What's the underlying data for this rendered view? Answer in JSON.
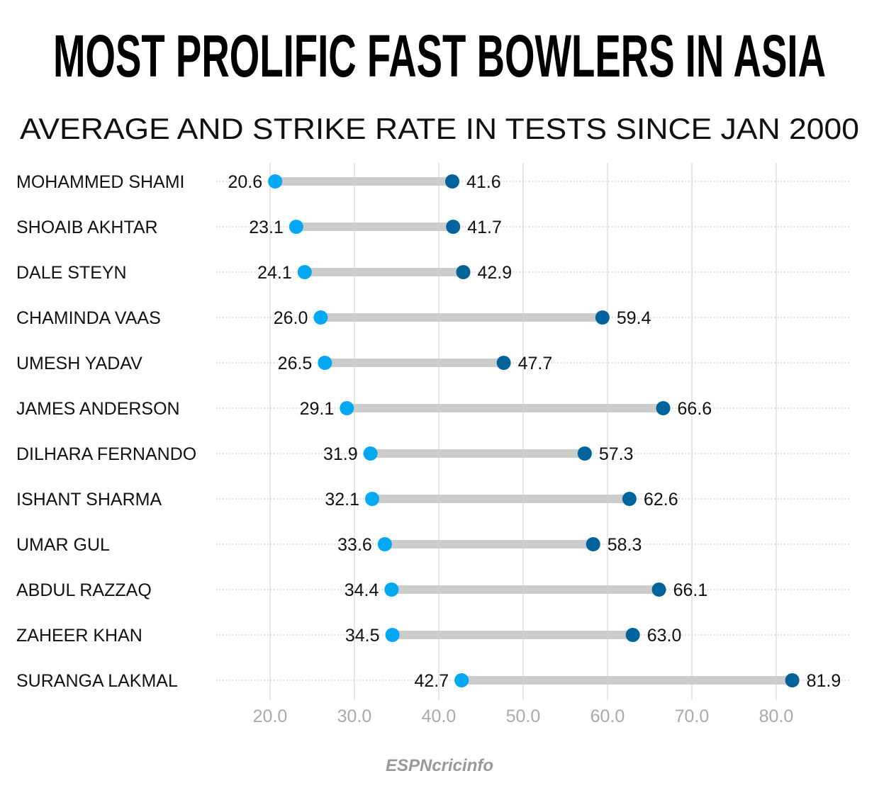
{
  "chart_data": {
    "type": "dumbbell",
    "title": "MOST PROLIFIC FAST BOWLERS IN ASIA",
    "subtitle": "AVERAGE AND STRIKE RATE IN TESTS SINCE JAN 2000",
    "categories": [
      "MOHAMMED SHAMI",
      "SHOAIB AKHTAR",
      "DALE STEYN",
      "CHAMINDA VAAS",
      "UMESH YADAV",
      "JAMES ANDERSON",
      "DILHARA FERNANDO",
      "ISHANT SHARMA",
      "UMAR GUL",
      "ABDUL RAZZAQ",
      "ZAHEER KHAN",
      "SURANGA LAKMAL"
    ],
    "series": [
      {
        "values": [
          20.6,
          23.1,
          24.1,
          26.0,
          26.5,
          29.1,
          31.9,
          32.1,
          33.6,
          34.4,
          34.5,
          42.7
        ],
        "color": "#00a9f2"
      },
      {
        "values": [
          41.6,
          41.7,
          42.9,
          59.4,
          47.7,
          66.6,
          57.3,
          62.6,
          58.3,
          66.1,
          63.0,
          81.9
        ],
        "color": "#00639c"
      }
    ],
    "xticks": [
      "20.0",
      "30.0",
      "40.0",
      "50.0",
      "60.0",
      "70.0",
      "80.0"
    ],
    "xlim": [
      13.6,
      87.3
    ],
    "grid": true,
    "bar_color": "#cccccc"
  },
  "footer": {
    "logo": "ESPNcricinfo"
  }
}
